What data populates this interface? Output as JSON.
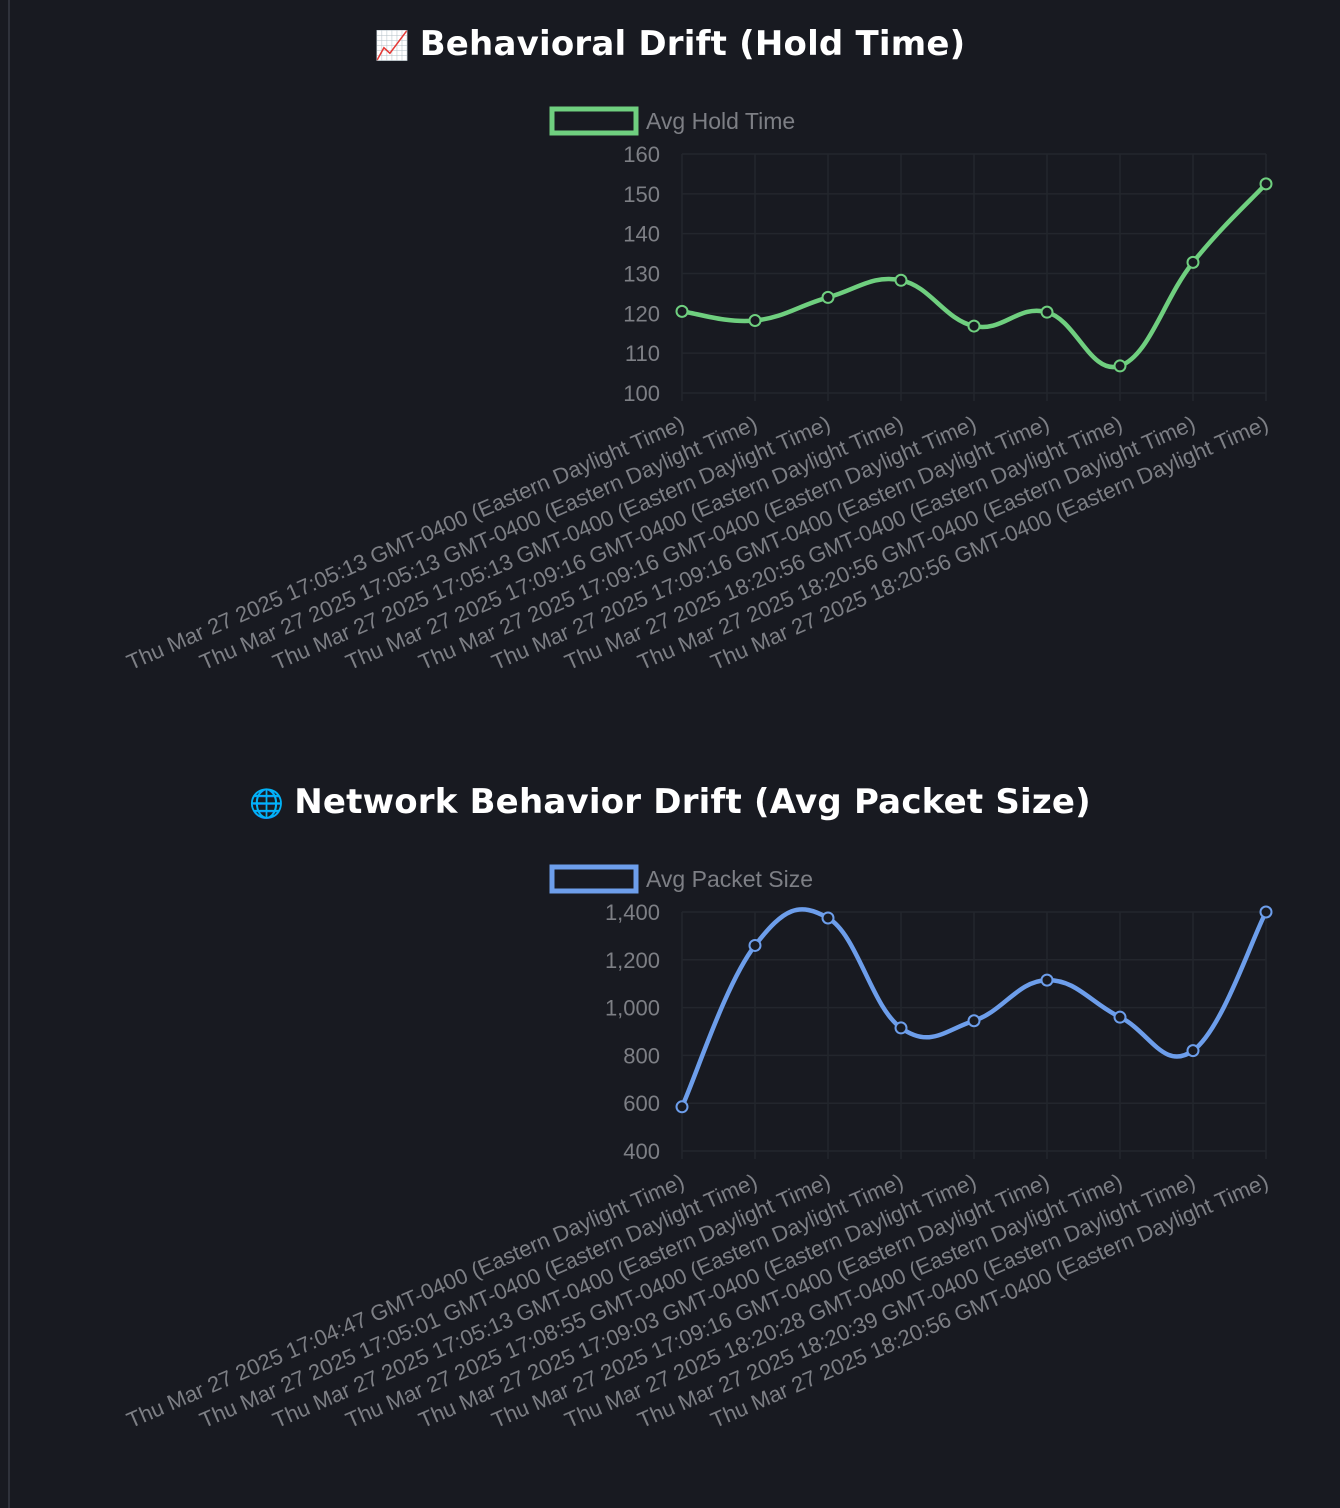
{
  "charts": [
    {
      "title_emoji": "📈",
      "title": "Behavioral Drift (Hold Time)",
      "icon": "chart-increasing-icon",
      "color": "#6fcf7f",
      "chart_data": {
        "type": "line",
        "title": "Behavioral Drift (Hold Time)",
        "categories": [
          "Thu Mar 27 2025 17:05:13 GMT-0400 (Eastern Daylight Time)",
          "Thu Mar 27 2025 17:05:13 GMT-0400 (Eastern Daylight Time)",
          "Thu Mar 27 2025 17:05:13 GMT-0400 (Eastern Daylight Time)",
          "Thu Mar 27 2025 17:09:16 GMT-0400 (Eastern Daylight Time)",
          "Thu Mar 27 2025 17:09:16 GMT-0400 (Eastern Daylight Time)",
          "Thu Mar 27 2025 17:09:16 GMT-0400 (Eastern Daylight Time)",
          "Thu Mar 27 2025 18:20:56 GMT-0400 (Eastern Daylight Time)",
          "Thu Mar 27 2025 18:20:56 GMT-0400 (Eastern Daylight Time)",
          "Thu Mar 27 2025 18:20:56 GMT-0400 (Eastern Daylight Time)"
        ],
        "series": [
          {
            "name": "Avg Hold Time",
            "values": [
              120.5,
              118.2,
              124.0,
              128.3,
              116.8,
              120.3,
              106.8,
              132.8,
              152.5
            ]
          }
        ],
        "ylim": [
          100,
          160
        ],
        "yticks": [
          100,
          110,
          120,
          130,
          140,
          150,
          160
        ],
        "ytick_labels": [
          "100",
          "110",
          "120",
          "130",
          "140",
          "150",
          "160"
        ],
        "grid": true,
        "legend": "top"
      }
    },
    {
      "title_emoji": "🌐",
      "title": "Network Behavior Drift (Avg Packet Size)",
      "icon": "globe-icon",
      "color": "#6d9eeb",
      "chart_data": {
        "type": "line",
        "title": "Network Behavior Drift (Avg Packet Size)",
        "categories": [
          "Thu Mar 27 2025 17:04:47 GMT-0400 (Eastern Daylight Time)",
          "Thu Mar 27 2025 17:05:01 GMT-0400 (Eastern Daylight Time)",
          "Thu Mar 27 2025 17:05:13 GMT-0400 (Eastern Daylight Time)",
          "Thu Mar 27 2025 17:08:55 GMT-0400 (Eastern Daylight Time)",
          "Thu Mar 27 2025 17:09:03 GMT-0400 (Eastern Daylight Time)",
          "Thu Mar 27 2025 17:09:16 GMT-0400 (Eastern Daylight Time)",
          "Thu Mar 27 2025 18:20:28 GMT-0400 (Eastern Daylight Time)",
          "Thu Mar 27 2025 18:20:39 GMT-0400 (Eastern Daylight Time)",
          "Thu Mar 27 2025 18:20:56 GMT-0400 (Eastern Daylight Time)"
        ],
        "series": [
          {
            "name": "Avg Packet Size",
            "values": [
              585,
              1260,
              1375,
              915,
              945,
              1115,
              960,
              820,
              1400
            ]
          }
        ],
        "ylim": [
          400,
          1400
        ],
        "yticks": [
          400,
          600,
          800,
          1000,
          1200,
          1400
        ],
        "ytick_labels": [
          "400",
          "600",
          "800",
          "1,000",
          "1,200",
          "1,400"
        ],
        "grid": true,
        "legend": "top"
      }
    }
  ]
}
